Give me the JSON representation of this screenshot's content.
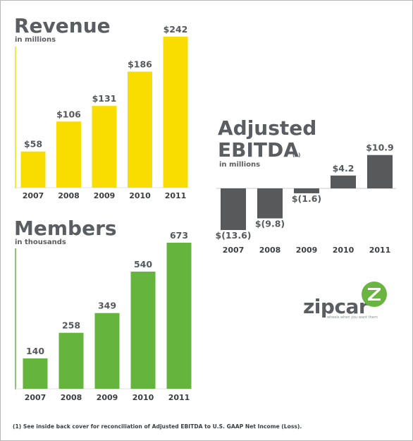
{
  "colors": {
    "revenue": "#f9dd00",
    "ebitda": "#58595b",
    "members": "#65b43d",
    "logo_green": "#6ab441"
  },
  "chart_data": [
    {
      "type": "bar",
      "title": "Revenue",
      "subtitle": "in millions",
      "categories": [
        "2007",
        "2008",
        "2009",
        "2010",
        "2011"
      ],
      "values": [
        58,
        106,
        131,
        186,
        242
      ],
      "value_labels": [
        "$58",
        "$106",
        "$131",
        "$186",
        "$242"
      ]
    },
    {
      "type": "bar",
      "title": "Adjusted EBITDA",
      "title_line1": "Adjusted",
      "title_line2": "EBITDA",
      "footnote_marker": "(1)",
      "subtitle": "in millions",
      "categories": [
        "2007",
        "2008",
        "2009",
        "2010",
        "2011"
      ],
      "values": [
        -13.6,
        -9.8,
        -1.6,
        4.2,
        10.9
      ],
      "value_labels": [
        "$(13.6)",
        "$(9.8)",
        "$(1.6)",
        "$4.2",
        "$10.9"
      ]
    },
    {
      "type": "bar",
      "title": "Members",
      "subtitle": "in thousands",
      "categories": [
        "2007",
        "2008",
        "2009",
        "2010",
        "2011"
      ],
      "values": [
        140,
        258,
        349,
        540,
        673
      ],
      "value_labels": [
        "140",
        "258",
        "349",
        "540",
        "673"
      ]
    }
  ],
  "logo": {
    "wordmark": "zipcar",
    "tagline": "wheels when you want them",
    "mark_letter": "Z"
  },
  "footnote": "(1) See inside back cover for reconciliation of Adjusted EBITDA to U.S. GAAP Net Income (Loss)."
}
